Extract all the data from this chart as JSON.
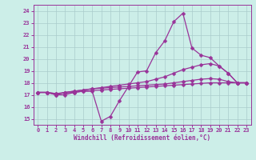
{
  "xlabel": "Windchill (Refroidissement éolien,°C)",
  "bg_color": "#cceee8",
  "grid_color": "#aacccc",
  "line_color": "#993399",
  "xlim": [
    -0.5,
    23.5
  ],
  "ylim": [
    14.5,
    24.5
  ],
  "yticks": [
    15,
    16,
    17,
    18,
    19,
    20,
    21,
    22,
    23,
    24
  ],
  "xticks": [
    0,
    1,
    2,
    3,
    4,
    5,
    6,
    7,
    8,
    9,
    10,
    11,
    12,
    13,
    14,
    15,
    16,
    17,
    18,
    19,
    20,
    21,
    22,
    23
  ],
  "series": [
    [
      17.2,
      17.2,
      17.0,
      17.0,
      17.2,
      17.3,
      17.3,
      14.8,
      15.2,
      16.5,
      17.7,
      18.9,
      19.0,
      20.5,
      21.5,
      23.1,
      23.8,
      20.9,
      20.3,
      20.1,
      19.4,
      18.8,
      18.0,
      18.0
    ],
    [
      17.2,
      17.2,
      17.0,
      17.2,
      17.3,
      17.4,
      17.5,
      17.6,
      17.7,
      17.8,
      17.9,
      18.0,
      18.1,
      18.3,
      18.5,
      18.8,
      19.1,
      19.3,
      19.5,
      19.6,
      19.4,
      18.8,
      18.0,
      18.0
    ],
    [
      17.2,
      17.2,
      17.1,
      17.2,
      17.3,
      17.4,
      17.5,
      17.55,
      17.6,
      17.65,
      17.7,
      17.75,
      17.8,
      17.85,
      17.9,
      18.0,
      18.1,
      18.2,
      18.3,
      18.35,
      18.3,
      18.1,
      18.0,
      18.0
    ],
    [
      17.2,
      17.2,
      17.1,
      17.15,
      17.2,
      17.3,
      17.35,
      17.4,
      17.45,
      17.5,
      17.55,
      17.6,
      17.65,
      17.7,
      17.75,
      17.8,
      17.85,
      17.9,
      17.95,
      18.0,
      18.0,
      18.0,
      18.0,
      18.0
    ]
  ],
  "marker": "D",
  "marker_size": 2.5,
  "linewidth": 0.9,
  "tick_fontsize": 5.0,
  "xlabel_fontsize": 5.5
}
